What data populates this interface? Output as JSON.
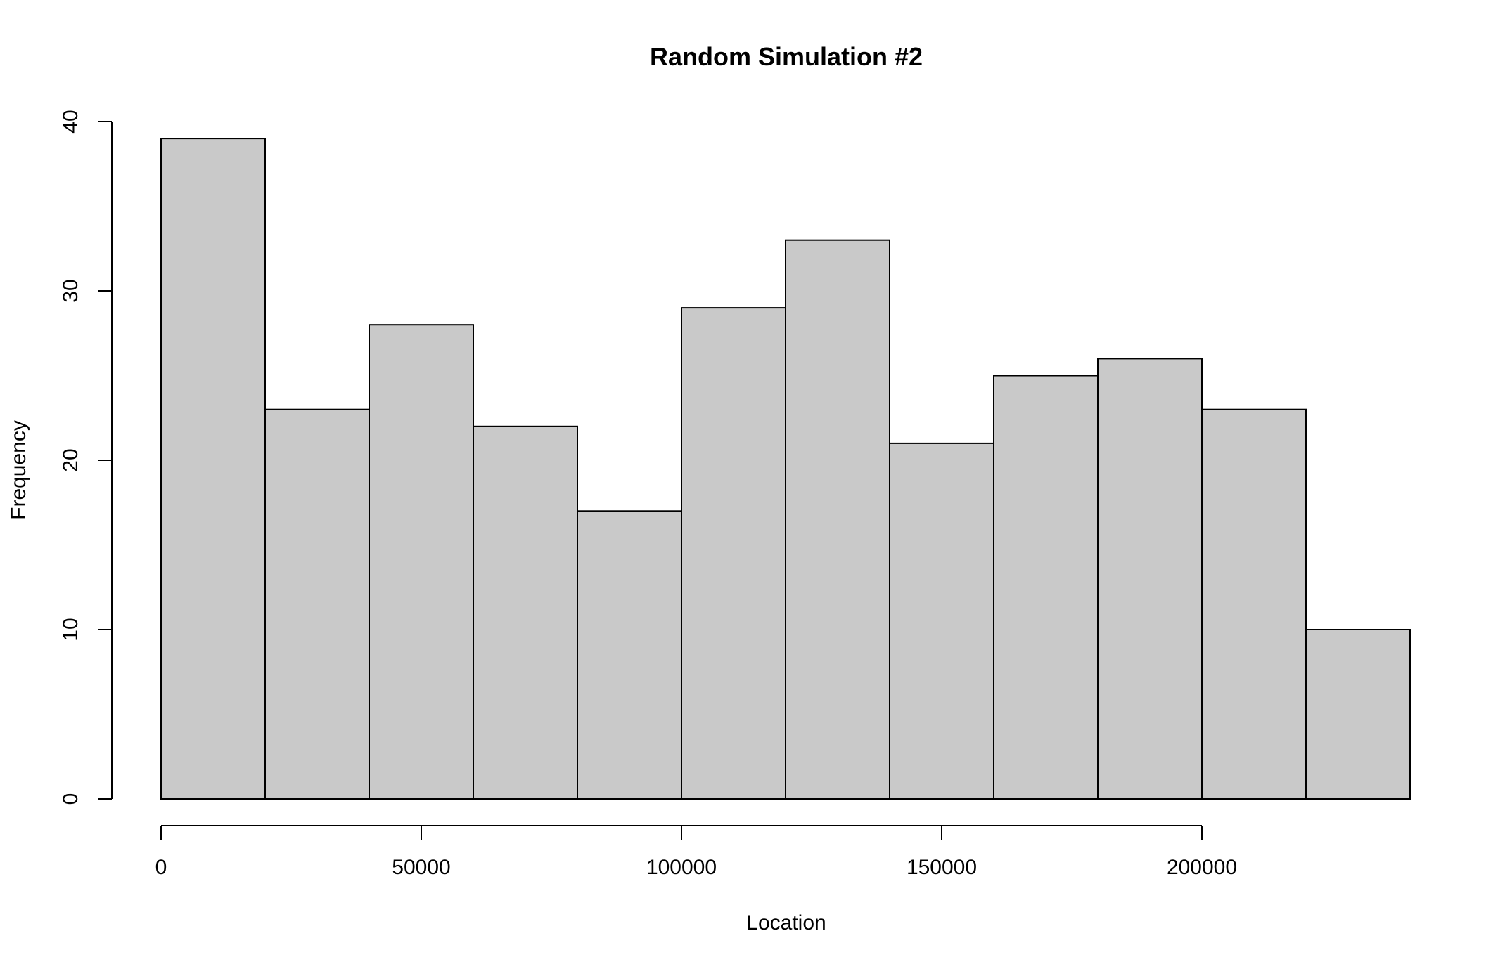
{
  "chart_data": {
    "type": "bar",
    "title": "Random Simulation #2",
    "xlabel": "Location",
    "ylabel": "Frequency",
    "bin_edges": [
      0,
      20000,
      40000,
      60000,
      80000,
      100000,
      120000,
      140000,
      160000,
      180000,
      200000,
      220000,
      240000
    ],
    "values": [
      39,
      23,
      28,
      22,
      17,
      29,
      33,
      21,
      25,
      26,
      23,
      10
    ],
    "xlim": [
      0,
      240000
    ],
    "ylim": [
      0,
      40
    ],
    "x_ticks": [
      {
        "value": 0,
        "label": "0"
      },
      {
        "value": 50000,
        "label": "50000"
      },
      {
        "value": 100000,
        "label": "100000"
      },
      {
        "value": 150000,
        "label": "150000"
      },
      {
        "value": 200000,
        "label": "200000"
      }
    ],
    "y_ticks": [
      {
        "value": 0,
        "label": "0"
      },
      {
        "value": 10,
        "label": "10"
      },
      {
        "value": 20,
        "label": "20"
      },
      {
        "value": 30,
        "label": "30"
      },
      {
        "value": 40,
        "label": "40"
      }
    ],
    "bar_color": "#c9c9c9",
    "grid": false,
    "legend": "none"
  }
}
